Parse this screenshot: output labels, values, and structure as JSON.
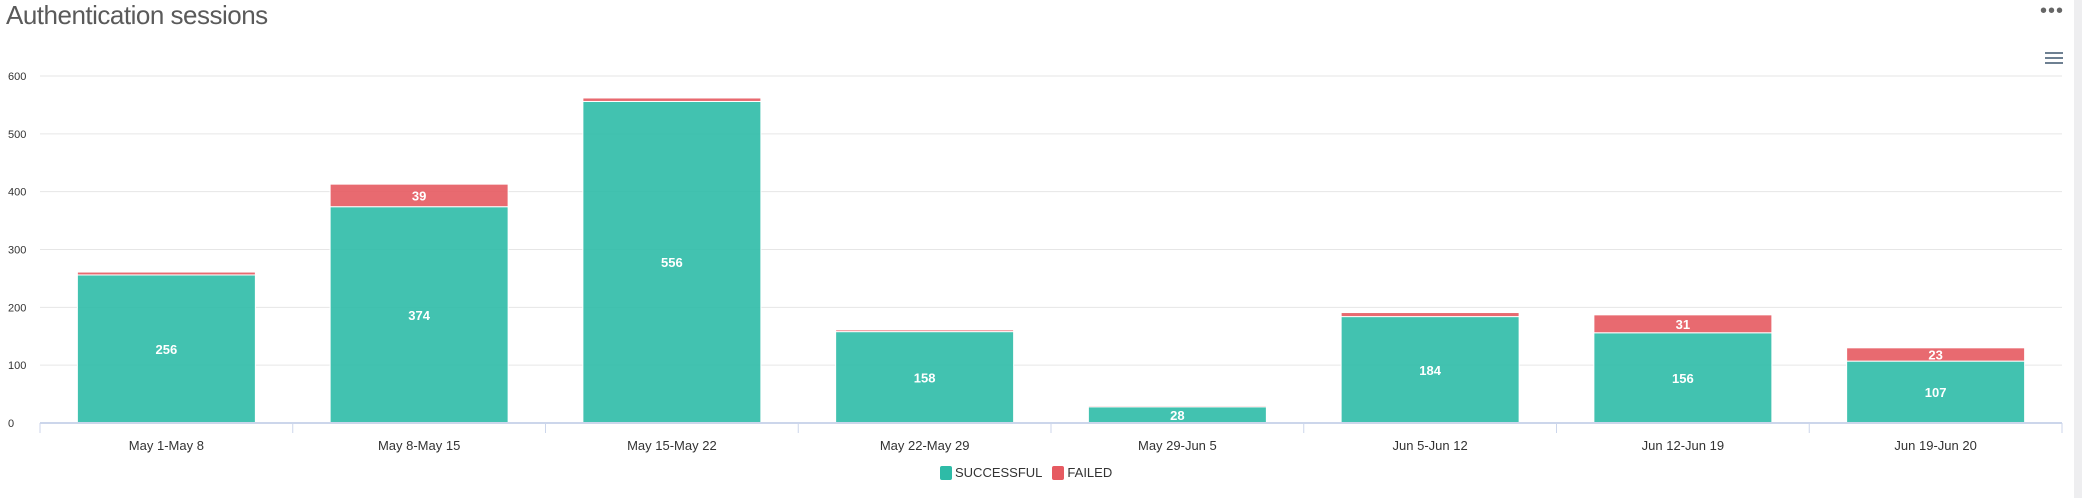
{
  "title": "Authentication sessions",
  "more_icon": "more-horizontal-icon",
  "menu_icon": "hamburger-menu-icon",
  "chart_data": {
    "type": "bar",
    "stacked": true,
    "categories": [
      "May 1-May 8",
      "May 8-May 15",
      "May 15-May 22",
      "May 22-May 29",
      "May 29-Jun 5",
      "Jun 5-Jun 12",
      "Jun 12-Jun 19",
      "Jun 19-Jun 20"
    ],
    "series": [
      {
        "name": "SUCCESSFUL",
        "color": "#2ebba7",
        "values": [
          256,
          374,
          556,
          158,
          28,
          184,
          156,
          107
        ],
        "labels": [
          "256",
          "374",
          "556",
          "158",
          "28",
          "184",
          "156",
          "107"
        ]
      },
      {
        "name": "FAILED",
        "color": "#e65a61",
        "values": [
          5,
          39,
          6,
          3,
          2,
          7,
          31,
          23
        ],
        "labels": [
          "",
          "39",
          "",
          "",
          "",
          "",
          "31",
          "23"
        ]
      }
    ],
    "ylim": [
      0,
      600
    ],
    "yticks": [
      "0",
      "100",
      "200",
      "300",
      "400",
      "500",
      "600"
    ],
    "grid": true,
    "legend": "bottom-center"
  }
}
